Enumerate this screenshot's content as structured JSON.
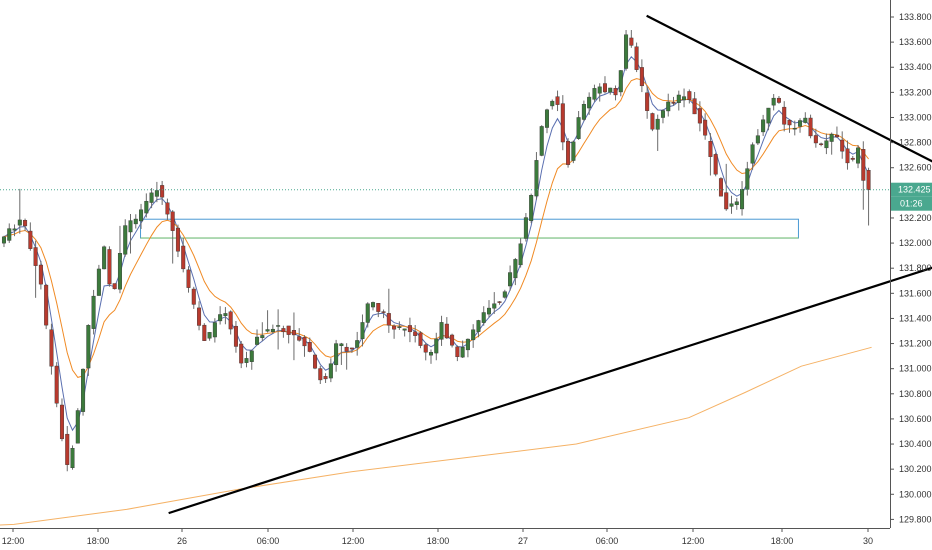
{
  "chart_data": {
    "type": "candlestick",
    "title": "",
    "y_ticks": [
      133.8,
      133.6,
      133.4,
      133.2,
      133.0,
      132.8,
      132.6,
      132.4,
      132.2,
      132.0,
      131.8,
      131.6,
      131.4,
      131.2,
      131.0,
      130.8,
      130.6,
      130.4,
      130.2,
      130.0,
      129.8
    ],
    "y_tick_labels": [
      "133.800",
      "133.600",
      "133.400",
      "133.200",
      "133.000",
      "132.800",
      "132.600",
      "132.400",
      "132.200",
      "132.000",
      "131.800",
      "131.600",
      "131.400",
      "131.200",
      "131.000",
      "130.800",
      "130.600",
      "130.400",
      "130.200",
      "130.000",
      "129.800"
    ],
    "ylim": [
      129.74,
      133.96
    ],
    "x_tick_labels": [
      "12:00",
      "18:00",
      "26",
      "06:00",
      "12:00",
      "18:00",
      "27",
      "06:00",
      "12:00",
      "18:00",
      "30"
    ],
    "current_price": {
      "value": 132.425,
      "label": "132.425",
      "countdown": "01:26"
    },
    "colors": {
      "up": "#3c7a3c",
      "down": "#b83a2e",
      "ma_fast": "#5a6fb0",
      "ma_mid": "#f08a24",
      "ma_slow": "#f5b266",
      "trendline": "#000000",
      "zone_blue": "#4a9ad4",
      "zone_green": "#6ab86a",
      "price_tag": "#4aa88f"
    },
    "zone": {
      "top": 132.19,
      "bottom": 132.04
    },
    "trendlines": [
      {
        "name": "resistance",
        "x": [
          22.5,
          34.5
        ],
        "y": [
          133.81,
          132.44
        ]
      },
      {
        "name": "support",
        "x": [
          5.5,
          39.0
        ],
        "y": [
          129.85,
          132.26
        ]
      }
    ],
    "ma_slow_points": {
      "x": [
        -3.0,
        0.0,
        4.0,
        8.0,
        12.0,
        16.0,
        20.0,
        24.0,
        26.0,
        28.0,
        30.5
      ],
      "y": [
        129.73,
        129.76,
        129.88,
        130.04,
        130.18,
        130.29,
        130.4,
        130.61,
        130.81,
        131.02,
        131.17
      ]
    }
  }
}
